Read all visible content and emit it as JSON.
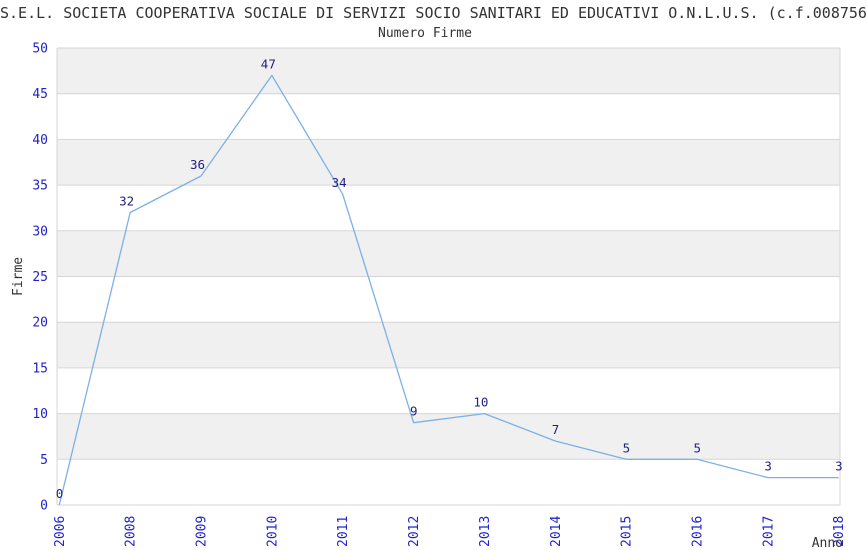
{
  "colors": {
    "line": "#7cb0e8",
    "tick_label": "#2222cc",
    "data_label": "#1f1f80",
    "band_gray": "#f0f0f0",
    "band_white": "#ffffff",
    "grid_border": "#d6d6d6",
    "text": "#333333",
    "background": "#ffffff"
  },
  "chart_data": {
    "type": "line",
    "title": "S.E.L. SOCIETA COOPERATIVA SOCIALE DI SERVIZI SOCIO SANITARI ED EDUCATIVI O.N.L.U.S. (c.f.008756",
    "subtitle": "Numero Firme",
    "xlabel": "Anno",
    "ylabel": "Firme",
    "categories": [
      "2006",
      "2008",
      "2009",
      "2010",
      "2011",
      "2012",
      "2013",
      "2014",
      "2015",
      "2016",
      "2017",
      "2018"
    ],
    "values": [
      0,
      32,
      36,
      47,
      34,
      9,
      10,
      7,
      5,
      5,
      3,
      3
    ],
    "ylim": [
      0,
      50
    ],
    "ytick_step": 5,
    "yticks": [
      0,
      5,
      10,
      15,
      20,
      25,
      30,
      35,
      40,
      45,
      50
    ],
    "grid": "alternating horizontal gray/white bands every 5 units, thin light-gray boundary lines",
    "legend": "none",
    "data_labels_shown": true,
    "x_tick_rotation_degrees": -90
  }
}
